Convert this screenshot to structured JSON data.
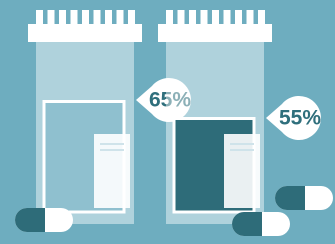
{
  "chart_data": {
    "type": "pill-bottle",
    "values": [
      65,
      55
    ],
    "value_labels": [
      "65%",
      "55%"
    ],
    "colors": [
      "#8fc0cf",
      "#2e6c79"
    ]
  }
}
